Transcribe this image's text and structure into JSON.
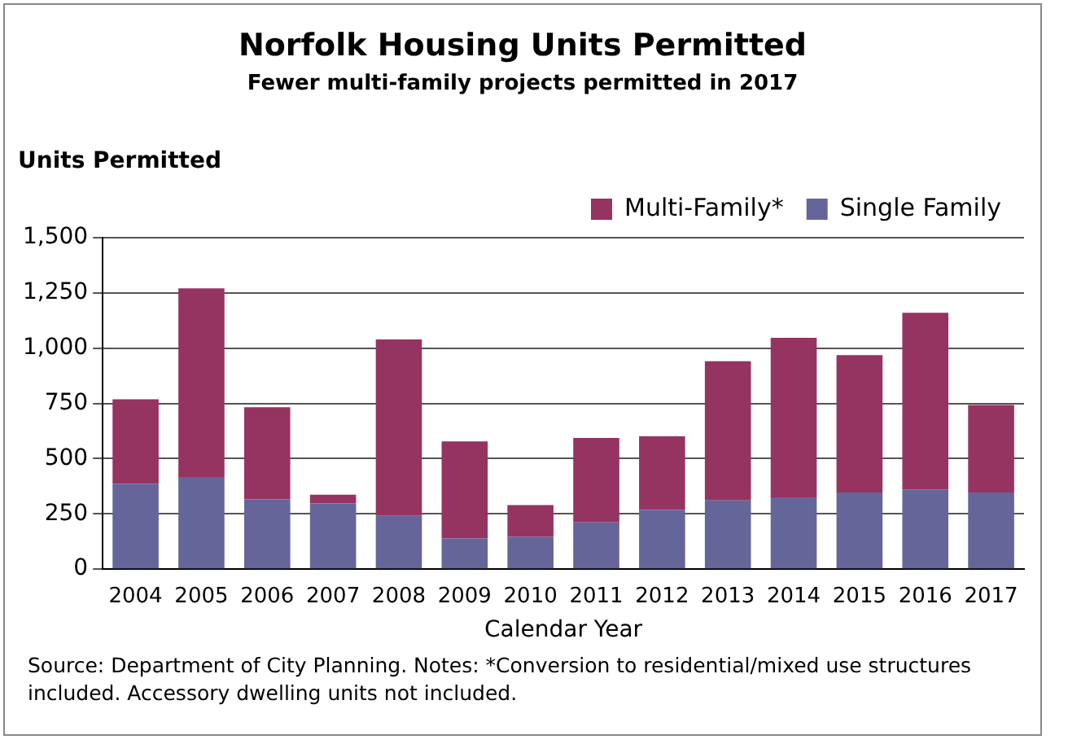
{
  "chart_data": {
    "type": "bar",
    "title": "Norfolk Housing Units Permitted",
    "subtitle": "Fewer multi-family projects permitted in 2017",
    "ylabel": "Units Permitted",
    "xlabel": "Calendar Year",
    "categories": [
      "2004",
      "2005",
      "2006",
      "2007",
      "2008",
      "2009",
      "2010",
      "2011",
      "2012",
      "2013",
      "2014",
      "2015",
      "2016",
      "2017"
    ],
    "stacked": true,
    "series": [
      {
        "name": "Single Family",
        "color": "#65659a",
        "values": [
          387,
          417,
          316,
          297,
          241,
          139,
          146,
          212,
          269,
          311,
          325,
          347,
          361,
          347
        ]
      },
      {
        "name": "Multi-Family*",
        "color": "#953461",
        "values": [
          382,
          854,
          417,
          40,
          799,
          439,
          144,
          382,
          332,
          630,
          722,
          622,
          799,
          396
        ]
      }
    ],
    "ylim": [
      0,
      1500
    ],
    "yticks": [
      0,
      {
        "value": 250,
        "label": "250"
      },
      {
        "value": 500,
        "label": "500"
      },
      {
        "value": 750,
        "label": "750"
      },
      {
        "value": 1000,
        "label": "1,000"
      },
      {
        "value": 1250,
        "label": "1,250"
      },
      {
        "value": 1500,
        "label": "1,500"
      }
    ],
    "grid": "y",
    "legend": "top right",
    "annotations": [
      "Source: Department of City Planning.  Notes: *Conversion to residential/mixed use structures included.  Accessory dwelling units not included."
    ]
  }
}
